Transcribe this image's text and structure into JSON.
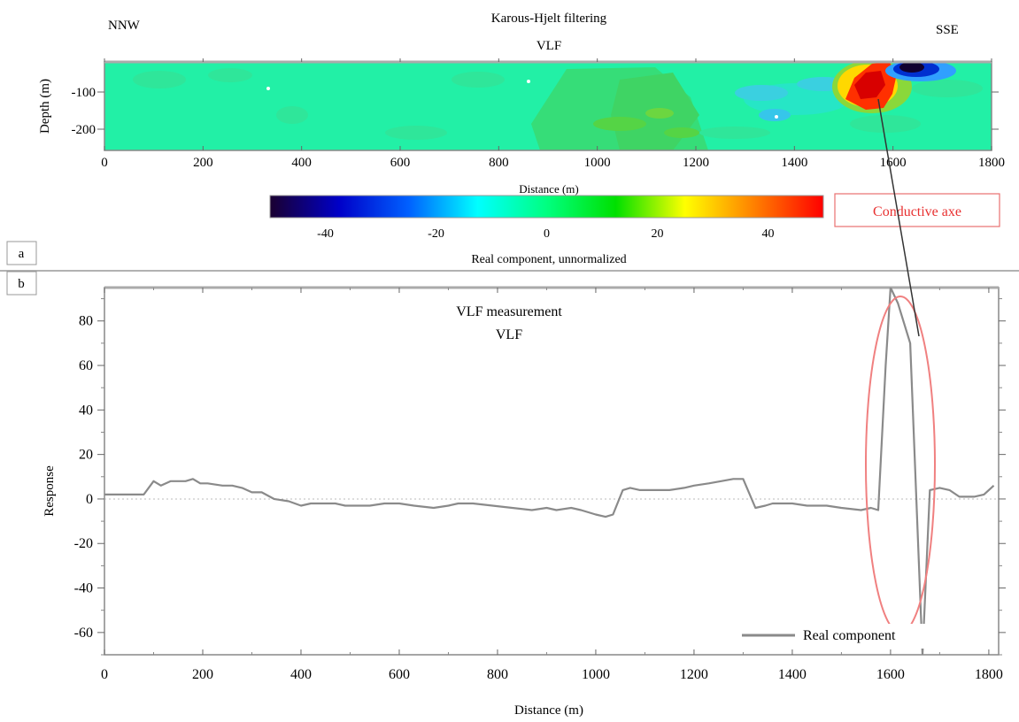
{
  "panel_labels": {
    "a": "a",
    "b": "b"
  },
  "top_panel": {
    "title": "Karous-Hjelt filtering",
    "subtitle": "VLF",
    "left_direction": "NNW",
    "right_direction": "SSE",
    "ylabel": "Depth (m)",
    "xlabel": "Distance (m)",
    "x_ticks": [
      "0",
      "200",
      "400",
      "600",
      "800",
      "1000",
      "1200",
      "1400",
      "1600",
      "1800"
    ],
    "y_ticks": [
      "-100",
      "-200"
    ],
    "colorbar": {
      "label": "Real component, unnormalized",
      "ticks": [
        "-40",
        "-20",
        "0",
        "20",
        "40"
      ],
      "tick_values": [
        -40,
        -20,
        0,
        20,
        40
      ],
      "range": [
        -50,
        50
      ],
      "colors": [
        "#1a0030",
        "#0000c8",
        "#0060ff",
        "#00ffff",
        "#00ff80",
        "#00e000",
        "#ffff00",
        "#ff8000",
        "#ff0000"
      ]
    },
    "annotation": "Conductive axe",
    "annotation_color": "#e83030"
  },
  "chart_data": {
    "type": "line",
    "title": "VLF measurement",
    "subtitle": "VLF",
    "xlabel": "Distance (m)",
    "ylabel": "Response",
    "xlim": [
      0,
      1820
    ],
    "ylim": [
      -70,
      95
    ],
    "x_ticks": [
      0,
      200,
      400,
      600,
      800,
      1000,
      1200,
      1400,
      1600,
      1800
    ],
    "y_ticks": [
      -60,
      -40,
      -20,
      0,
      20,
      40,
      60,
      80
    ],
    "zero_line": true,
    "legend_position": "bottom-right",
    "series": [
      {
        "name": "Real component",
        "color": "#8a8a8a",
        "x": [
          0,
          80,
          100,
          115,
          135,
          165,
          180,
          195,
          210,
          240,
          260,
          280,
          300,
          320,
          345,
          375,
          400,
          420,
          440,
          470,
          490,
          510,
          540,
          570,
          600,
          630,
          670,
          700,
          720,
          750,
          790,
          830,
          870,
          900,
          920,
          950,
          970,
          1000,
          1020,
          1035,
          1055,
          1070,
          1090,
          1120,
          1150,
          1180,
          1200,
          1230,
          1255,
          1280,
          1300,
          1325,
          1345,
          1360,
          1400,
          1430,
          1470,
          1500,
          1540,
          1560,
          1575,
          1590,
          1600,
          1615,
          1640,
          1665,
          1680,
          1700,
          1720,
          1740,
          1770,
          1790,
          1810
        ],
        "y": [
          2,
          2,
          8,
          6,
          8,
          8,
          9,
          7,
          7,
          6,
          6,
          5,
          3,
          3,
          0,
          -1,
          -3,
          -2,
          -2,
          -2,
          -3,
          -3,
          -3,
          -2,
          -2,
          -3,
          -4,
          -3,
          -2,
          -2,
          -3,
          -4,
          -5,
          -4,
          -5,
          -4,
          -5,
          -7,
          -8,
          -7,
          4,
          5,
          4,
          4,
          4,
          5,
          6,
          7,
          8,
          9,
          9,
          -4,
          -3,
          -2,
          -2,
          -3,
          -3,
          -4,
          -5,
          -4,
          -5,
          60,
          95,
          88,
          70,
          -70,
          4,
          5,
          4,
          1,
          1,
          2,
          6
        ]
      }
    ]
  }
}
